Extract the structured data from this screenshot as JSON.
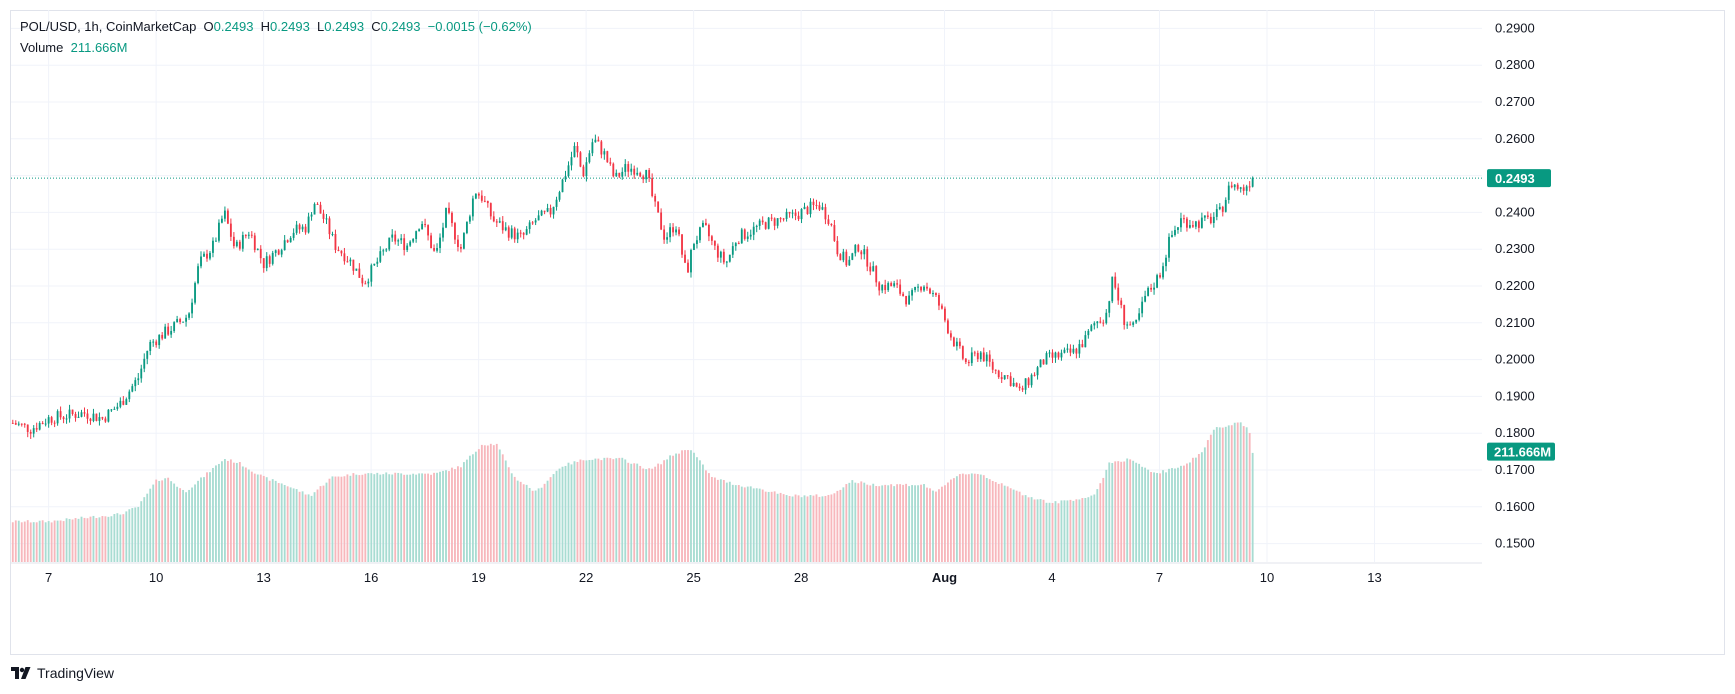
{
  "legend": {
    "symbol": "POL/USD, 1h, CoinMarketCap",
    "o_label": "O",
    "o_value": "0.2493",
    "h_label": "H",
    "h_value": "0.2493",
    "l_label": "L",
    "l_value": "0.2493",
    "c_label": "C",
    "c_value": "0.2493",
    "change": "−0.0015 (−0.62%)",
    "volume_label": "Volume",
    "volume_value": "211.666M"
  },
  "footer": {
    "brand": "TradingView"
  },
  "colors": {
    "up": "#089981",
    "down": "#f23645",
    "up_vol": "#a8dcd2",
    "down_vol": "#f7b7bc",
    "grid": "#f0f3fa"
  },
  "chart_data": {
    "type": "candlestick",
    "title": "",
    "xlabel": "",
    "ylabel": "",
    "ylim": [
      0.145,
      0.295
    ],
    "y_ticks": [
      "0.2900",
      "0.2800",
      "0.2700",
      "0.2600",
      "0.2500",
      "0.2400",
      "0.2300",
      "0.2200",
      "0.2100",
      "0.2000",
      "0.1900",
      "0.1800",
      "0.1700",
      "0.1600",
      "0.1500"
    ],
    "x_ticks": [
      {
        "label": "7",
        "day": 0
      },
      {
        "label": "10",
        "day": 3
      },
      {
        "label": "13",
        "day": 6
      },
      {
        "label": "16",
        "day": 9
      },
      {
        "label": "19",
        "day": 12
      },
      {
        "label": "22",
        "day": 15
      },
      {
        "label": "25",
        "day": 18
      },
      {
        "label": "28",
        "day": 21
      },
      {
        "label": "Aug",
        "day": 25,
        "bold": true
      },
      {
        "label": "4",
        "day": 28
      },
      {
        "label": "7",
        "day": 31
      },
      {
        "label": "10",
        "day": 34
      },
      {
        "label": "13",
        "day": 37
      }
    ],
    "x_range_days": [
      -1.05,
      40.0
    ],
    "last_price": "0.2493",
    "last_volume": "211.666M",
    "price_path": [
      [
        -1.0,
        0.1828
      ],
      [
        -0.5,
        0.1812
      ],
      [
        0,
        0.184
      ],
      [
        0.5,
        0.1848
      ],
      [
        1.0,
        0.1855
      ],
      [
        1.5,
        0.184
      ],
      [
        2.0,
        0.188
      ],
      [
        2.5,
        0.195
      ],
      [
        2.8,
        0.204
      ],
      [
        3.2,
        0.207
      ],
      [
        3.5,
        0.209
      ],
      [
        3.9,
        0.212
      ],
      [
        4.2,
        0.226
      ],
      [
        4.6,
        0.231
      ],
      [
        4.9,
        0.24
      ],
      [
        5.2,
        0.23
      ],
      [
        5.6,
        0.235
      ],
      [
        6.0,
        0.226
      ],
      [
        6.4,
        0.23
      ],
      [
        6.8,
        0.235
      ],
      [
        7.2,
        0.236
      ],
      [
        7.4,
        0.243
      ],
      [
        7.7,
        0.238
      ],
      [
        8.0,
        0.231
      ],
      [
        8.4,
        0.227
      ],
      [
        8.8,
        0.221
      ],
      [
        9.2,
        0.227
      ],
      [
        9.6,
        0.233
      ],
      [
        10.0,
        0.231
      ],
      [
        10.4,
        0.238
      ],
      [
        10.8,
        0.228
      ],
      [
        11.1,
        0.24
      ],
      [
        11.5,
        0.23
      ],
      [
        11.9,
        0.246
      ],
      [
        12.1,
        0.244
      ],
      [
        12.4,
        0.238
      ],
      [
        12.8,
        0.235
      ],
      [
        13.2,
        0.233
      ],
      [
        13.6,
        0.238
      ],
      [
        14.0,
        0.24
      ],
      [
        14.4,
        0.25
      ],
      [
        14.7,
        0.258
      ],
      [
        14.9,
        0.25
      ],
      [
        15.2,
        0.26
      ],
      [
        15.5,
        0.256
      ],
      [
        15.8,
        0.249
      ],
      [
        16.1,
        0.252
      ],
      [
        16.4,
        0.252
      ],
      [
        16.7,
        0.25
      ],
      [
        16.9,
        0.242
      ],
      [
        17.2,
        0.233
      ],
      [
        17.5,
        0.237
      ],
      [
        17.8,
        0.223
      ],
      [
        18.0,
        0.232
      ],
      [
        18.3,
        0.236
      ],
      [
        18.6,
        0.23
      ],
      [
        18.9,
        0.226
      ],
      [
        19.2,
        0.233
      ],
      [
        19.6,
        0.235
      ],
      [
        20.0,
        0.237
      ],
      [
        20.4,
        0.238
      ],
      [
        20.8,
        0.239
      ],
      [
        21.2,
        0.241
      ],
      [
        21.5,
        0.242
      ],
      [
        21.8,
        0.238
      ],
      [
        22.0,
        0.23
      ],
      [
        22.3,
        0.226
      ],
      [
        22.6,
        0.231
      ],
      [
        22.9,
        0.226
      ],
      [
        23.2,
        0.22
      ],
      [
        23.6,
        0.22
      ],
      [
        24.0,
        0.216
      ],
      [
        24.4,
        0.221
      ],
      [
        24.8,
        0.216
      ],
      [
        25.2,
        0.206
      ],
      [
        25.6,
        0.199
      ],
      [
        26.0,
        0.202
      ],
      [
        26.4,
        0.197
      ],
      [
        26.8,
        0.195
      ],
      [
        27.1,
        0.191
      ],
      [
        27.4,
        0.195
      ],
      [
        27.8,
        0.2
      ],
      [
        28.2,
        0.201
      ],
      [
        28.6,
        0.202
      ],
      [
        28.9,
        0.205
      ],
      [
        29.2,
        0.21
      ],
      [
        29.5,
        0.212
      ],
      [
        29.7,
        0.222
      ],
      [
        30.0,
        0.211
      ],
      [
        30.3,
        0.208
      ],
      [
        30.6,
        0.217
      ],
      [
        31.0,
        0.223
      ],
      [
        31.3,
        0.233
      ],
      [
        31.6,
        0.238
      ],
      [
        32.0,
        0.237
      ],
      [
        32.4,
        0.238
      ],
      [
        32.7,
        0.24
      ],
      [
        33.0,
        0.248
      ],
      [
        33.3,
        0.246
      ],
      [
        33.6,
        0.2493
      ]
    ],
    "volume_path": [
      [
        -1.0,
        0.156
      ],
      [
        0,
        0.156
      ],
      [
        1.0,
        0.157
      ],
      [
        2.0,
        0.158
      ],
      [
        2.5,
        0.16
      ],
      [
        3.0,
        0.167
      ],
      [
        3.3,
        0.168
      ],
      [
        3.8,
        0.164
      ],
      [
        4.3,
        0.168
      ],
      [
        4.9,
        0.173
      ],
      [
        5.3,
        0.172
      ],
      [
        6.0,
        0.168
      ],
      [
        6.6,
        0.166
      ],
      [
        7.3,
        0.163
      ],
      [
        7.9,
        0.168
      ],
      [
        8.6,
        0.169
      ],
      [
        9.2,
        0.169
      ],
      [
        10.0,
        0.169
      ],
      [
        10.8,
        0.169
      ],
      [
        11.5,
        0.171
      ],
      [
        12.1,
        0.177
      ],
      [
        12.5,
        0.177
      ],
      [
        13.0,
        0.168
      ],
      [
        13.6,
        0.164
      ],
      [
        14.3,
        0.171
      ],
      [
        15.0,
        0.173
      ],
      [
        16.0,
        0.173
      ],
      [
        16.8,
        0.17
      ],
      [
        17.4,
        0.174
      ],
      [
        17.9,
        0.176
      ],
      [
        18.5,
        0.168
      ],
      [
        19.2,
        0.166
      ],
      [
        19.8,
        0.165
      ],
      [
        20.6,
        0.163
      ],
      [
        21.2,
        0.163
      ],
      [
        21.8,
        0.163
      ],
      [
        22.4,
        0.167
      ],
      [
        23.0,
        0.166
      ],
      [
        23.8,
        0.166
      ],
      [
        24.4,
        0.166
      ],
      [
        24.8,
        0.164
      ],
      [
        25.4,
        0.169
      ],
      [
        26.0,
        0.169
      ],
      [
        26.6,
        0.166
      ],
      [
        27.3,
        0.163
      ],
      [
        28.0,
        0.161
      ],
      [
        28.6,
        0.162
      ],
      [
        29.2,
        0.163
      ],
      [
        29.6,
        0.172
      ],
      [
        30.2,
        0.173
      ],
      [
        30.8,
        0.169
      ],
      [
        31.3,
        0.17
      ],
      [
        31.8,
        0.172
      ],
      [
        32.2,
        0.175
      ],
      [
        32.5,
        0.181
      ],
      [
        32.8,
        0.182
      ],
      [
        33.2,
        0.183
      ],
      [
        33.5,
        0.181
      ],
      [
        33.65,
        0.172
      ]
    ]
  }
}
